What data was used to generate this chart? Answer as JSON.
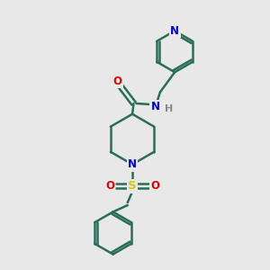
{
  "background_color": "#e8e8e8",
  "bond_color": "#2a6e5a",
  "atom_colors": {
    "N": "#0000cc",
    "O": "#dd0000",
    "S": "#cccc00",
    "H": "#888888"
  },
  "line_width": 1.8,
  "figsize": [
    3.0,
    3.0
  ],
  "dpi": 100
}
